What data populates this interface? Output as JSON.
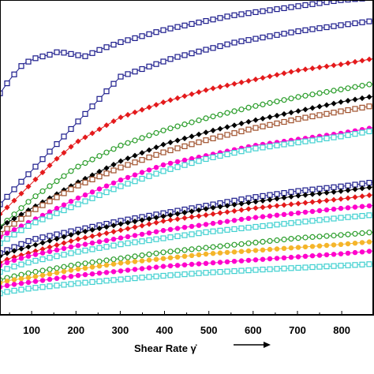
{
  "chart_data": {
    "type": "line",
    "xlabel": "Shear Rate γ̇",
    "xlim": [
      0,
      880
    ],
    "x_ticks": [
      100,
      200,
      300,
      400,
      500,
      600,
      700,
      800
    ],
    "x_tick_labels": [
      "100",
      "200",
      "300",
      "400",
      "500",
      "600",
      "700",
      "800"
    ],
    "grid": false,
    "watermark": "",
    "series": [
      {
        "color": "#1c1c8c",
        "marker": "open-square",
        "x": [
          0,
          10,
          25,
          50,
          80,
          110,
          140,
          160,
          180,
          200,
          220,
          260,
          300,
          350,
          400,
          450,
          500,
          550,
          600,
          650,
          700,
          750,
          800,
          850,
          880
        ],
        "y": [
          0.56,
          0.64,
          0.7,
          0.75,
          0.8,
          0.82,
          0.83,
          0.84,
          0.835,
          0.83,
          0.825,
          0.85,
          0.87,
          0.89,
          0.91,
          0.925,
          0.94,
          0.955,
          0.965,
          0.975,
          0.985,
          0.995,
          1.005,
          1.01,
          1.015
        ]
      },
      {
        "color": "#1c1c8c",
        "marker": "open-square",
        "x": [
          0,
          300,
          420,
          560,
          700,
          800,
          880
        ],
        "y": [
          0.31,
          0.76,
          0.82,
          0.87,
          0.905,
          0.925,
          0.94
        ]
      },
      {
        "color": "#e41a1c",
        "marker": "filled-diamond",
        "x": [
          0,
          20,
          50,
          100,
          150,
          200,
          300,
          400,
          500,
          600,
          700,
          800,
          880
        ],
        "y": [
          0.27,
          0.31,
          0.35,
          0.42,
          0.49,
          0.55,
          0.63,
          0.68,
          0.72,
          0.75,
          0.78,
          0.8,
          0.82
        ]
      },
      {
        "color": "#2a9d2a",
        "marker": "open-circle",
        "x": [
          0,
          20,
          60,
          100,
          150,
          200,
          300,
          400,
          500,
          600,
          700,
          800,
          880
        ],
        "y": [
          0.23,
          0.27,
          0.32,
          0.37,
          0.42,
          0.47,
          0.54,
          0.59,
          0.63,
          0.665,
          0.695,
          0.72,
          0.74
        ]
      },
      {
        "color": "#000000",
        "marker": "filled-diamond",
        "x": [
          0,
          40,
          100,
          150,
          200,
          300,
          400,
          500,
          600,
          700,
          800,
          880
        ],
        "y": [
          0.25,
          0.29,
          0.34,
          0.38,
          0.42,
          0.49,
          0.545,
          0.585,
          0.62,
          0.65,
          0.68,
          0.7
        ]
      },
      {
        "color": "#a0522d",
        "marker": "open-square",
        "x": [
          0,
          30,
          100,
          200,
          300,
          400,
          500,
          600,
          700,
          800,
          880
        ],
        "y": [
          0.23,
          0.26,
          0.33,
          0.41,
          0.47,
          0.52,
          0.56,
          0.595,
          0.625,
          0.65,
          0.67
        ]
      },
      {
        "color": "#ff00cc",
        "marker": "filled-circle",
        "x": [
          0,
          30,
          100,
          200,
          300,
          400,
          500,
          600,
          700,
          800,
          880
        ],
        "y": [
          0.22,
          0.25,
          0.3,
          0.37,
          0.43,
          0.48,
          0.51,
          0.54,
          0.56,
          0.58,
          0.6
        ]
      },
      {
        "color": "#40d0d0",
        "marker": "open-square",
        "x": [
          0,
          30,
          100,
          200,
          300,
          400,
          500,
          600,
          700,
          800,
          880
        ],
        "y": [
          0.2,
          0.23,
          0.29,
          0.35,
          0.41,
          0.46,
          0.5,
          0.53,
          0.55,
          0.57,
          0.59
        ]
      },
      {
        "color": "#1c1c8c",
        "marker": "open-square",
        "x": [
          0,
          50,
          100,
          200,
          300,
          400,
          500,
          600,
          700,
          800,
          880
        ],
        "y": [
          0.18,
          0.21,
          0.24,
          0.27,
          0.3,
          0.325,
          0.35,
          0.375,
          0.395,
          0.41,
          0.425
        ]
      },
      {
        "color": "#000000",
        "marker": "filled-diamond",
        "x": [
          0,
          50,
          100,
          200,
          300,
          400,
          500,
          600,
          700,
          800,
          880
        ],
        "y": [
          0.17,
          0.2,
          0.22,
          0.26,
          0.29,
          0.315,
          0.34,
          0.36,
          0.38,
          0.395,
          0.41
        ]
      },
      {
        "color": "#e41a1c",
        "marker": "filled-diamond",
        "x": [
          0,
          50,
          100,
          200,
          300,
          400,
          500,
          600,
          700,
          800,
          880
        ],
        "y": [
          0.15,
          0.18,
          0.2,
          0.24,
          0.27,
          0.3,
          0.32,
          0.34,
          0.355,
          0.37,
          0.385
        ]
      },
      {
        "color": "#ff00cc",
        "marker": "filled-circle",
        "x": [
          0,
          50,
          100,
          200,
          300,
          400,
          500,
          600,
          700,
          800,
          880
        ],
        "y": [
          0.14,
          0.17,
          0.19,
          0.22,
          0.245,
          0.27,
          0.29,
          0.31,
          0.325,
          0.34,
          0.35
        ]
      },
      {
        "color": "#40d0d0",
        "marker": "open-square",
        "x": [
          0,
          50,
          100,
          200,
          300,
          400,
          500,
          600,
          700,
          800,
          880
        ],
        "y": [
          0.12,
          0.15,
          0.17,
          0.2,
          0.225,
          0.245,
          0.265,
          0.28,
          0.295,
          0.31,
          0.32
        ]
      },
      {
        "color": "#2a9d2a",
        "marker": "open-circle",
        "x": [
          0,
          50,
          100,
          200,
          300,
          400,
          500,
          600,
          700,
          800,
          880
        ],
        "y": [
          0.1,
          0.12,
          0.135,
          0.16,
          0.18,
          0.2,
          0.215,
          0.23,
          0.245,
          0.255,
          0.265
        ]
      },
      {
        "color": "#f5b52a",
        "marker": "filled-circle",
        "x": [
          0,
          50,
          100,
          200,
          300,
          400,
          500,
          600,
          700,
          800,
          880
        ],
        "y": [
          0.09,
          0.11,
          0.12,
          0.145,
          0.165,
          0.18,
          0.195,
          0.205,
          0.215,
          0.225,
          0.235
        ]
      },
      {
        "color": "#ff00cc",
        "marker": "filled-circle",
        "x": [
          0,
          50,
          100,
          200,
          300,
          400,
          500,
          600,
          700,
          800,
          880
        ],
        "y": [
          0.08,
          0.095,
          0.105,
          0.125,
          0.14,
          0.155,
          0.165,
          0.175,
          0.185,
          0.195,
          0.205
        ]
      },
      {
        "color": "#40d0d0",
        "marker": "open-square",
        "x": [
          0,
          50,
          100,
          200,
          300,
          400,
          500,
          600,
          700,
          800,
          880
        ],
        "y": [
          0.06,
          0.075,
          0.085,
          0.1,
          0.113,
          0.125,
          0.135,
          0.143,
          0.15,
          0.157,
          0.163
        ]
      }
    ]
  }
}
